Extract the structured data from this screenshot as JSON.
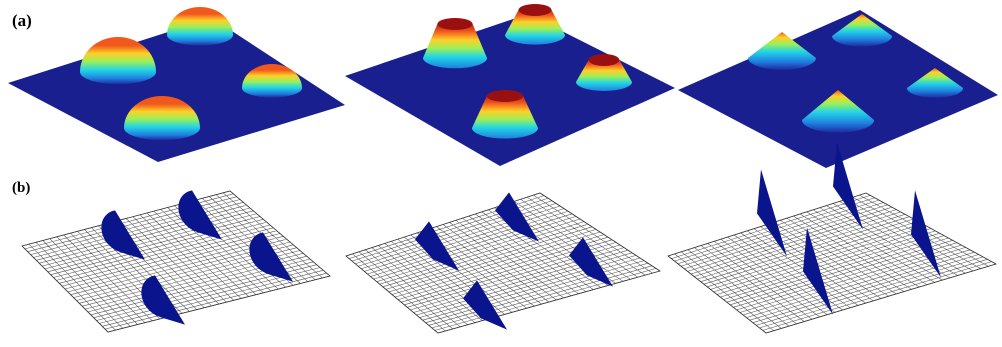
{
  "figure": {
    "panel_labels": [
      "(a)",
      "(b)"
    ],
    "row_a": {
      "surface_color": "#1a1f8f",
      "colormap": [
        "#1f2a9c",
        "#1f7fe0",
        "#22d5e6",
        "#9af05a",
        "#ffcf28",
        "#f0581c",
        "#9a1010"
      ],
      "plots": [
        {
          "bump_shape": "hemisphere"
        },
        {
          "bump_shape": "truncated-cone"
        },
        {
          "bump_shape": "cone"
        }
      ]
    },
    "row_b": {
      "mesh_color": "#555555",
      "shape_color": "#0a148c",
      "plots": [
        {
          "cross_section": "semicircle"
        },
        {
          "cross_section": "trapezoid"
        },
        {
          "cross_section": "triangle"
        }
      ]
    }
  }
}
